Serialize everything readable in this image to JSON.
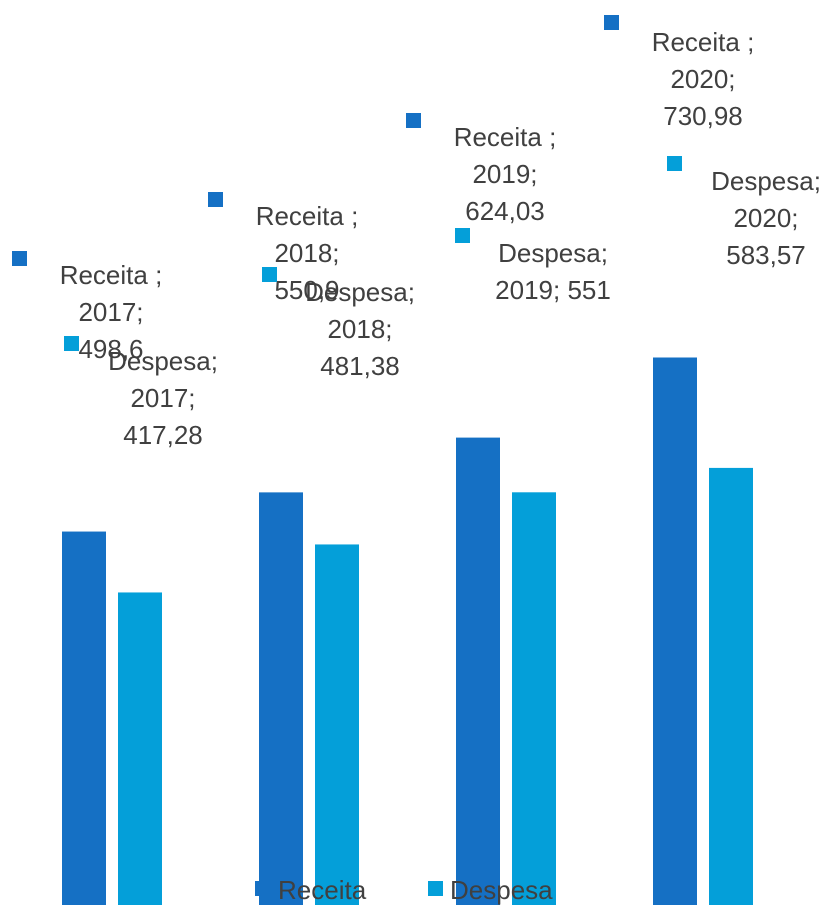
{
  "chart_data": {
    "type": "bar",
    "categories": [
      "2017",
      "2018",
      "2019",
      "2020"
    ],
    "series": [
      {
        "name": "Receita",
        "values": [
          498.6,
          550.9,
          624.03,
          730.98
        ],
        "color": "#1570C4"
      },
      {
        "name": "Despesa",
        "values": [
          417.28,
          481.38,
          551,
          583.57
        ],
        "color": "#049FD9"
      }
    ],
    "data_labels": [
      [
        [
          "Receita ;",
          "2017;",
          "498,6"
        ],
        [
          "Receita ;",
          "2018;",
          "550,9"
        ],
        [
          "Receita ;",
          "2019;",
          "624,03"
        ],
        [
          "Receita ;",
          "2020;",
          "730,98"
        ]
      ],
      [
        [
          "Despesa;",
          "2017;",
          "417,28"
        ],
        [
          "Despesa;",
          "2018;",
          "481,38"
        ],
        [
          "Despesa;",
          "2019; 551"
        ],
        [
          "Despesa;",
          "2020;",
          "583,57"
        ]
      ]
    ],
    "legend": {
      "position": "bottom",
      "entries": [
        "Receita",
        "Despesa"
      ]
    },
    "grid": false,
    "axes_visible": false
  }
}
